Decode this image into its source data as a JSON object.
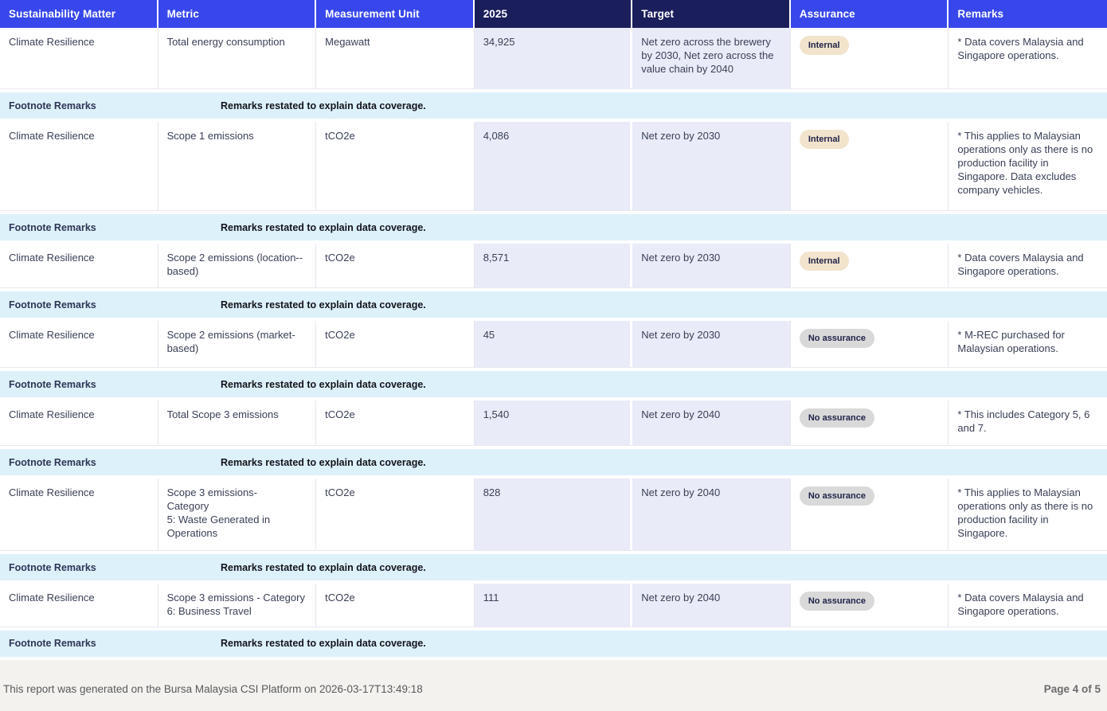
{
  "header": {
    "columns": [
      {
        "label": "Sustainability Matter",
        "variant": "blue"
      },
      {
        "label": "Metric",
        "variant": "blue"
      },
      {
        "label": "Measurement Unit",
        "variant": "blue"
      },
      {
        "label": "2025",
        "variant": "navy"
      },
      {
        "label": "Target",
        "variant": "navy"
      },
      {
        "label": "Assurance",
        "variant": "blue"
      },
      {
        "label": "Remarks",
        "variant": "blue"
      }
    ]
  },
  "footnote_row": {
    "label": "Footnote Remarks",
    "text": "Remarks restated to explain data coverage."
  },
  "rows": [
    {
      "matter": "Climate Resilience",
      "metric": "Total energy consumption",
      "unit": "Megawatt",
      "value_2025": "34,925",
      "target": "Net zero across the brewery by 2030, Net zero across the value chain by 2040",
      "assurance": "Internal",
      "assurance_style": "tan",
      "remarks": "* Data covers Malaysia and Singapore operations.",
      "min_height": 77
    },
    {
      "matter": "Climate Resilience",
      "metric": "Scope 1 emissions",
      "unit": "tCO2e",
      "value_2025": "4,086",
      "target": "Net zero by 2030",
      "assurance": "Internal",
      "assurance_style": "tan",
      "remarks": "* This applies to Malaysian operations only as there is no production facility in Singapore. Data excludes company vehicles.",
      "min_height": 112
    },
    {
      "matter": "Climate Resilience",
      "metric": "Scope 2 emissions (location--based)",
      "unit": "tCO2e",
      "value_2025": "8,571",
      "target": "Net zero by 2030",
      "assurance": "Internal",
      "assurance_style": "tan",
      "remarks": "* Data covers Malaysia and Singapore operations.",
      "min_height": 56
    },
    {
      "matter": "Climate Resilience",
      "metric": "Scope 2 emissions (market-based)",
      "unit": "tCO2e",
      "value_2025": "45",
      "target": "Net zero by 2030",
      "assurance": "No assurance",
      "assurance_style": "gray",
      "remarks": "* M-REC purchased for Malaysian operations.",
      "min_height": 59
    },
    {
      "matter": "Climate Resilience",
      "metric": "Total Scope 3 emissions",
      "unit": "tCO2e",
      "value_2025": "1,540",
      "target": "Net zero by 2040",
      "assurance": "No assurance",
      "assurance_style": "gray",
      "remarks": "* This includes Category 5, 6 and 7.",
      "min_height": 57
    },
    {
      "matter": "Climate Resilience",
      "metric": "Scope 3 emissions-\nCategory\n5: Waste Generated in\nOperations",
      "unit": "tCO2e",
      "value_2025": "828",
      "target": "Net zero by 2040",
      "assurance": "No assurance",
      "assurance_style": "gray",
      "remarks": "* This applies to Malaysian operations only as there is no production facility in Singapore.",
      "min_height": 91
    },
    {
      "matter": "Climate Resilience",
      "metric": "Scope 3 emissions - Category\n6: Business Travel",
      "unit": "tCO2e",
      "value_2025": "111",
      "target": "Net zero by 2040",
      "assurance": "No assurance",
      "assurance_style": "gray",
      "remarks": "* Data covers Malaysia and Singapore operations.",
      "min_height": 54
    }
  ],
  "footer": {
    "generated_text": "This report was generated on the Bursa Malaysia CSI Platform on 2026-03-17T13:49:18",
    "page_indicator": "Page 4 of 5"
  },
  "colors": {
    "header_blue": "#3747EC",
    "header_navy": "#1A1E5A",
    "value_column_bg": "#E9EBF8",
    "footnote_bg": "#DDF1FA",
    "badge_internal_bg": "#F2E3CC",
    "badge_no_assurance_bg": "#D9D9D9",
    "footer_bg": "#F3F2EF"
  }
}
